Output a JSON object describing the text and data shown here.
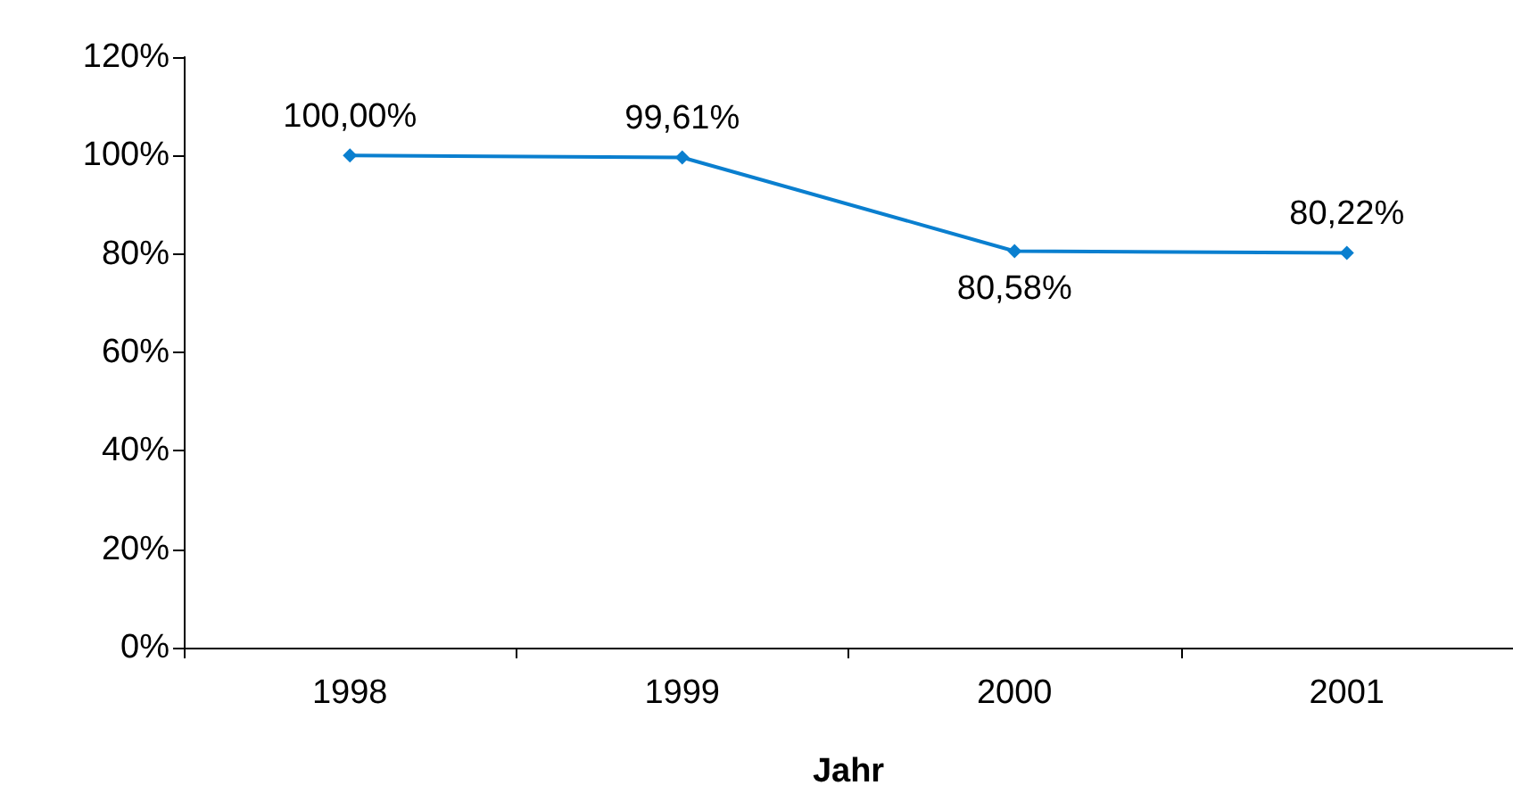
{
  "chart_data": {
    "type": "line",
    "xlabel": "Jahr",
    "categories": [
      "1998",
      "1999",
      "2000",
      "2001"
    ],
    "series": [
      {
        "color": "#0a7fcf",
        "values": [
          100,
          99.61,
          80.58,
          80.22
        ],
        "value_labels": [
          "100,00%",
          "99,61%",
          "80,58%",
          "80,22%"
        ]
      }
    ],
    "ylim": [
      0,
      120
    ],
    "yticks": [
      {
        "value": 0,
        "label": "0%"
      },
      {
        "value": 20,
        "label": "20%"
      },
      {
        "value": 40,
        "label": "40%"
      },
      {
        "value": 60,
        "label": "60%"
      },
      {
        "value": 80,
        "label": "80%"
      },
      {
        "value": 100,
        "label": "100%"
      },
      {
        "value": 120,
        "label": "120%"
      }
    ],
    "marker": "diamond",
    "line_style": "solid"
  }
}
